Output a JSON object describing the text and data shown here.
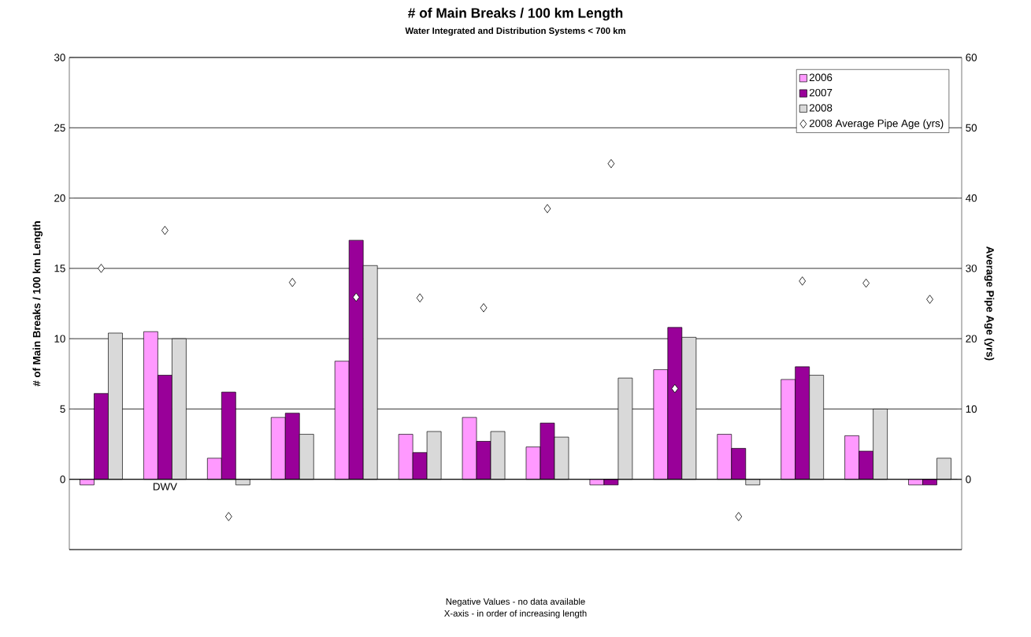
{
  "chart_data": {
    "type": "bar",
    "title": "# of Main Breaks  / 100 km Length",
    "subtitle": "Water Integrated and Distribution Systems < 700 km",
    "ylabel": "# of Main Breaks  / 100 km Length",
    "y2label": "Average Pipe Age (yrs)",
    "categories": [
      null,
      "DWV",
      null,
      null,
      null,
      null,
      null,
      null,
      null,
      null,
      null,
      null,
      null,
      null
    ],
    "series": [
      {
        "name": "2006",
        "color": "#ff99ff",
        "values": [
          -0.4,
          10.5,
          1.5,
          4.4,
          8.4,
          3.2,
          4.4,
          2.3,
          -0.4,
          7.8,
          3.2,
          7.1,
          3.1,
          -0.4
        ]
      },
      {
        "name": "2007",
        "color": "#990099",
        "values": [
          6.1,
          7.4,
          6.2,
          4.7,
          17.0,
          1.9,
          2.7,
          4.0,
          -0.4,
          10.8,
          2.2,
          8.0,
          2.0,
          -0.4
        ]
      },
      {
        "name": "2008",
        "color": "#d9d9d9",
        "values": [
          10.4,
          10.0,
          -0.4,
          3.2,
          15.2,
          3.4,
          3.4,
          3.0,
          7.2,
          10.1,
          -0.4,
          7.4,
          5.0,
          1.5
        ]
      },
      {
        "name": "2008 Average Pipe Age (yrs)",
        "type": "scatter",
        "axis": "y2",
        "marker": "diamond",
        "color": "#ffffff",
        "values": [
          30,
          35.4,
          -5.3,
          28.0,
          25.9,
          25.8,
          24.4,
          38.5,
          44.9,
          12.9,
          -5.3,
          28.2,
          27.9,
          25.6
        ]
      }
    ],
    "ylim": [
      -5,
      30
    ],
    "yticks": [
      {
        "value": -5,
        "label": null
      },
      0,
      5,
      10,
      15,
      20,
      25,
      30
    ],
    "y2lim": [
      -10,
      60
    ],
    "y2ticks": [
      {
        "value": -10,
        "label": null
      },
      0,
      10,
      20,
      30,
      40,
      50,
      60
    ],
    "grid": "y",
    "legend": "top right",
    "annotations": [
      "Negative Values - no data available",
      "X-axis - in order of increasing length"
    ]
  }
}
